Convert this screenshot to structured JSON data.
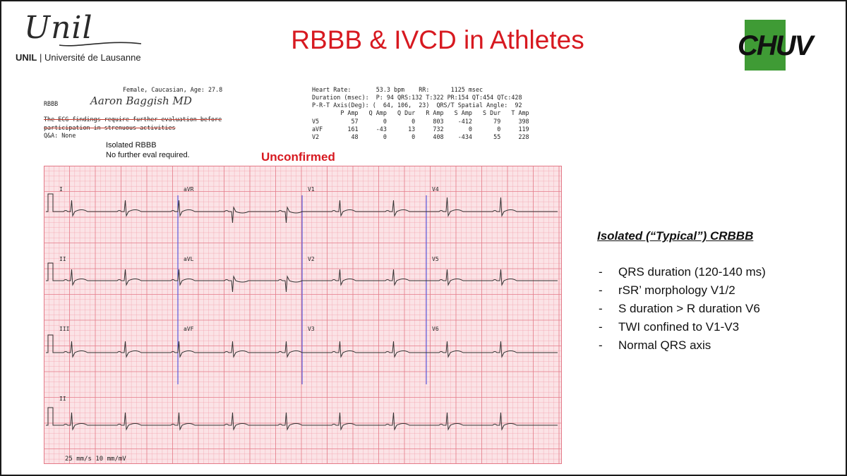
{
  "slide": {
    "title": "RBBB & IVCD in Athletes",
    "title_color": "#d71920"
  },
  "unil": {
    "script": "Unil",
    "abbr": "UNIL",
    "separator": "|",
    "name": "Université de Lausanne"
  },
  "chuv": {
    "text": "CHUV",
    "color_green": "#3f9b35",
    "color_black": "#111111"
  },
  "ecg": {
    "patient": "Female, Caucasian, Age: 27.8",
    "diagnosis_code": "RBBB",
    "signature": "Aaron Baggish MD",
    "struck_line1": "The ECG findings require further evaluation before",
    "struck_line2": "participation in strenuous activities",
    "qa": "Q&A: None",
    "note1": "Isolated RBBB",
    "note2": "No further eval required.",
    "unconfirmed": "Unconfirmed",
    "measurements": {
      "heart_rate": "Heart Rate:       53.3 bpm    RR:      1125 msec",
      "duration": "Duration (msec):  P: 94 QRS:132 T:322 PR:154 QT:454 QTc:428",
      "axis": "P-R-T Axis(Deg): (  64, 106,  23)  QRS/T Spatial Angle:  92",
      "table_header": "        P Amp   Q Amp   Q Dur   R Amp   S Amp   S Dur   T Amp",
      "rows": [
        "V5         57       0       0     803    -412      79     398",
        "aVF       161     -43      13     732       0       0     119",
        "V2         48       0       0     408    -434      55     228"
      ]
    },
    "lead_labels": [
      "I",
      "aVR",
      "V1",
      "V4",
      "II",
      "aVL",
      "V2",
      "V5",
      "III",
      "aVF",
      "V3",
      "V6",
      "II"
    ],
    "paper_speed": "25 mm/s  10 mm/mV",
    "grid_color": "#f2a3ad",
    "grid_major_color": "#e47a88",
    "paper_color": "#fbe3e6",
    "divider_color": "#5a5adc"
  },
  "notes": {
    "heading": "Isolated (“Typical”) CRBBB",
    "items": [
      "QRS duration (120-140 ms)",
      "rSR’ morphology V1/2",
      "S duration > R duration V6",
      "TWI confined to V1-V3",
      "Normal QRS axis"
    ]
  }
}
